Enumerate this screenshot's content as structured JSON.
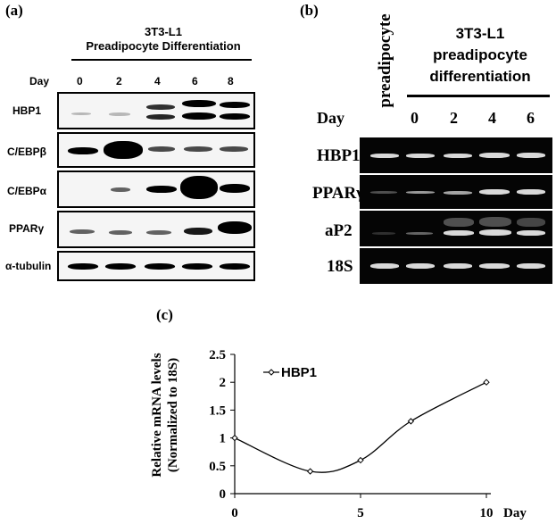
{
  "panel_a": {
    "label": "(a)",
    "header_line1": "3T3-L1",
    "header_line2": "Preadipocyte Differentiation",
    "day_label": "Day",
    "days": [
      "0",
      "2",
      "4",
      "6",
      "8"
    ],
    "rows": [
      "HBP1",
      "C/EBPβ",
      "C/EBPα",
      "PPARγ",
      "α-tubulin"
    ]
  },
  "panel_b": {
    "label": "(b)",
    "rotated_label": "preadipocyte",
    "header_line1": "3T3-L1",
    "header_line2": "preadipocyte",
    "header_line3": "differentiation",
    "day_label": "Day",
    "days": [
      "0",
      "2",
      "4",
      "6"
    ],
    "rows": [
      "HBP1",
      "PPARγ",
      "aP2",
      "18S"
    ]
  },
  "panel_c": {
    "label": "(c)"
  },
  "chart_data": {
    "type": "line",
    "title": "",
    "ylabel_line1": "Relative mRNA levels",
    "ylabel_line2": "(Normalized to 18S)",
    "xlabel": "Day",
    "x_ticks": [
      "0",
      "5",
      "10"
    ],
    "y_ticks": [
      "0",
      "0.5",
      "1",
      "1.5",
      "2",
      "2.5"
    ],
    "xlim": [
      0,
      10
    ],
    "ylim": [
      0,
      2.5
    ],
    "grid": false,
    "legend_position": "top-left",
    "series": [
      {
        "name": "HBP1",
        "x": [
          0,
          3,
          5,
          7,
          10
        ],
        "y": [
          1,
          0.4,
          0.6,
          1.3,
          2
        ]
      }
    ]
  }
}
